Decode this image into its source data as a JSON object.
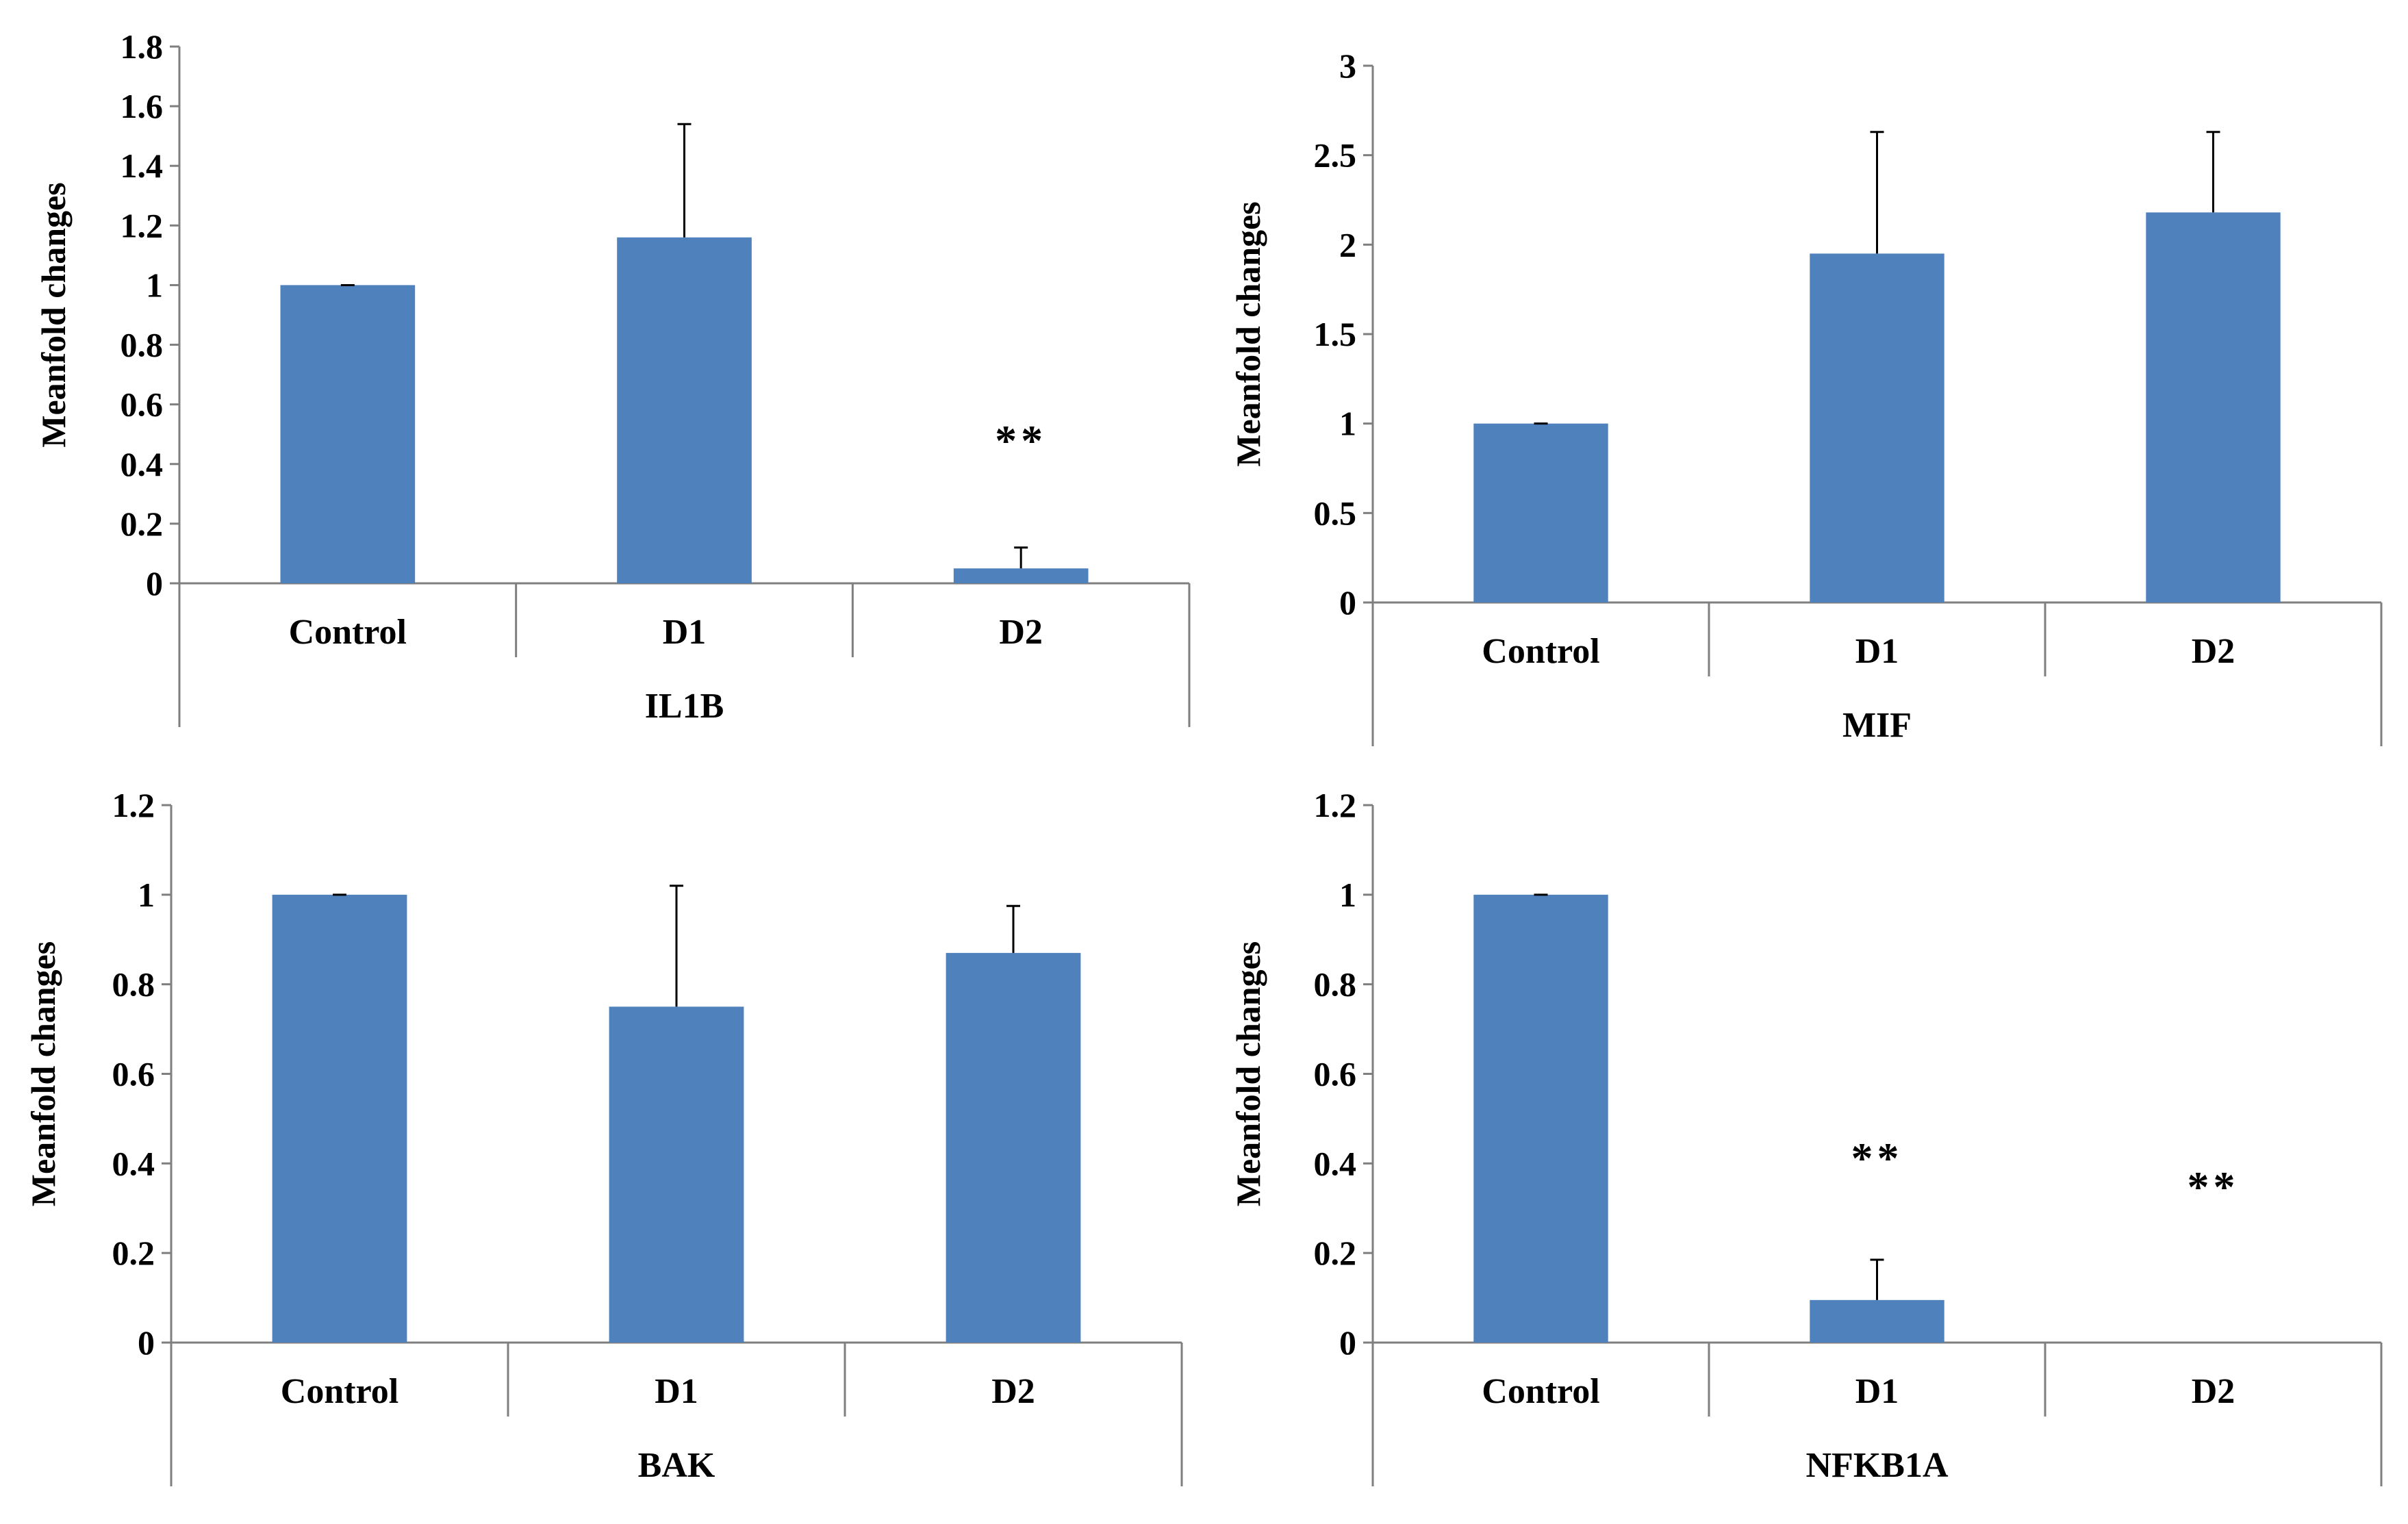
{
  "colors": {
    "bar": "#4f81bd",
    "axis": "#7f7f7f",
    "error": "#000000"
  },
  "chart_data": [
    {
      "type": "bar",
      "title": "IL1B",
      "ylabel": "Meanfold changes",
      "categories": [
        "Control",
        "D1",
        "D2"
      ],
      "values": [
        1.0,
        1.16,
        0.05
      ],
      "error": [
        0.0,
        0.38,
        0.07
      ],
      "significance": [
        "",
        "",
        "**"
      ],
      "ylim": [
        0,
        1.8
      ],
      "yticks": [
        0,
        0.2,
        0.4,
        0.6,
        0.8,
        1,
        1.2,
        1.4,
        1.6,
        1.8
      ],
      "ytick_labels": [
        "0",
        "0.2",
        "0.4",
        "0.6",
        "0.8",
        "1",
        "1.2",
        "1.4",
        "1.6",
        "1.8"
      ]
    },
    {
      "type": "bar",
      "title": "MIF",
      "ylabel": "Meanfold changes",
      "categories": [
        "Control",
        "D1",
        "D2"
      ],
      "values": [
        1.0,
        1.95,
        2.18
      ],
      "error": [
        0.0,
        0.68,
        0.45
      ],
      "significance": [
        "",
        "",
        ""
      ],
      "ylim": [
        0,
        3
      ],
      "yticks": [
        0,
        0.5,
        1,
        1.5,
        2,
        2.5,
        3
      ],
      "ytick_labels": [
        "0",
        "0.5",
        "1",
        "1.5",
        "2",
        "2.5",
        "3"
      ]
    },
    {
      "type": "bar",
      "title": "BAK",
      "ylabel": "Meanfold changes",
      "categories": [
        "Control",
        "D1",
        "D2"
      ],
      "values": [
        1.0,
        0.75,
        0.87
      ],
      "error": [
        0.0,
        0.27,
        0.105
      ],
      "significance": [
        "",
        "",
        ""
      ],
      "ylim": [
        0,
        1.2
      ],
      "yticks": [
        0,
        0.2,
        0.4,
        0.6,
        0.8,
        1,
        1.2
      ],
      "ytick_labels": [
        "0",
        "0.2",
        "0.4",
        "0.6",
        "0.8",
        "1",
        "1.2"
      ]
    },
    {
      "type": "bar",
      "title": "NFKB1A",
      "ylabel": "Meanfold changes",
      "categories": [
        "Control",
        "D1",
        "D2"
      ],
      "values": [
        1.0,
        0.095,
        0.0
      ],
      "error": [
        0.0,
        0.09,
        0.0
      ],
      "significance": [
        "",
        "**",
        "**"
      ],
      "ylim": [
        0,
        1.2
      ],
      "yticks": [
        0,
        0.2,
        0.4,
        0.6,
        0.8,
        1,
        1.2
      ],
      "ytick_labels": [
        "0",
        "0.2",
        "0.4",
        "0.6",
        "0.8",
        "1",
        "1.2"
      ]
    }
  ]
}
